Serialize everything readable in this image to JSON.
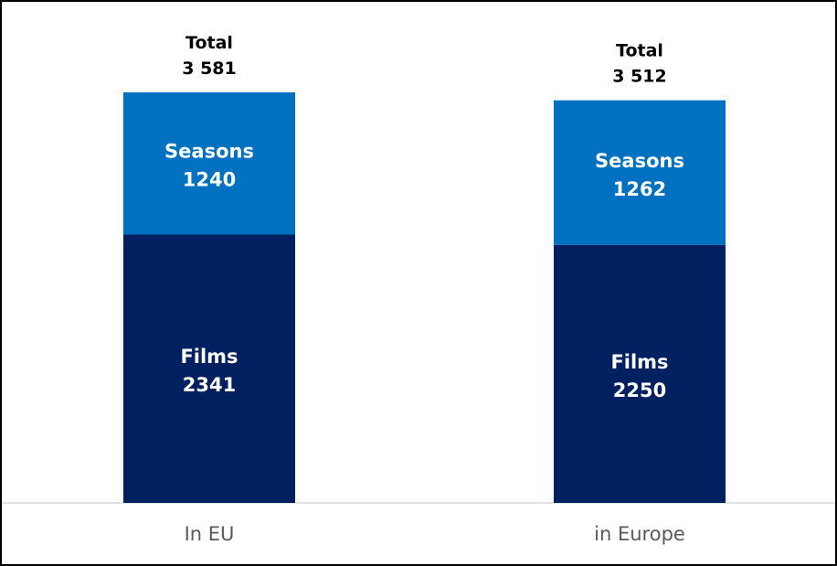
{
  "chart_data": {
    "type": "bar",
    "stacked": true,
    "categories": [
      "In EU",
      "in Europe"
    ],
    "series": [
      {
        "name": "Films",
        "values": [
          2341,
          2250
        ],
        "color": "#002060"
      },
      {
        "name": "Seasons",
        "values": [
          1240,
          1262
        ],
        "color": "#0070C0"
      }
    ],
    "totals": {
      "label": "Total",
      "values": [
        "3 581",
        "3 512"
      ]
    },
    "ylim": [
      0,
      4000
    ],
    "grid": false,
    "legend": "none"
  }
}
